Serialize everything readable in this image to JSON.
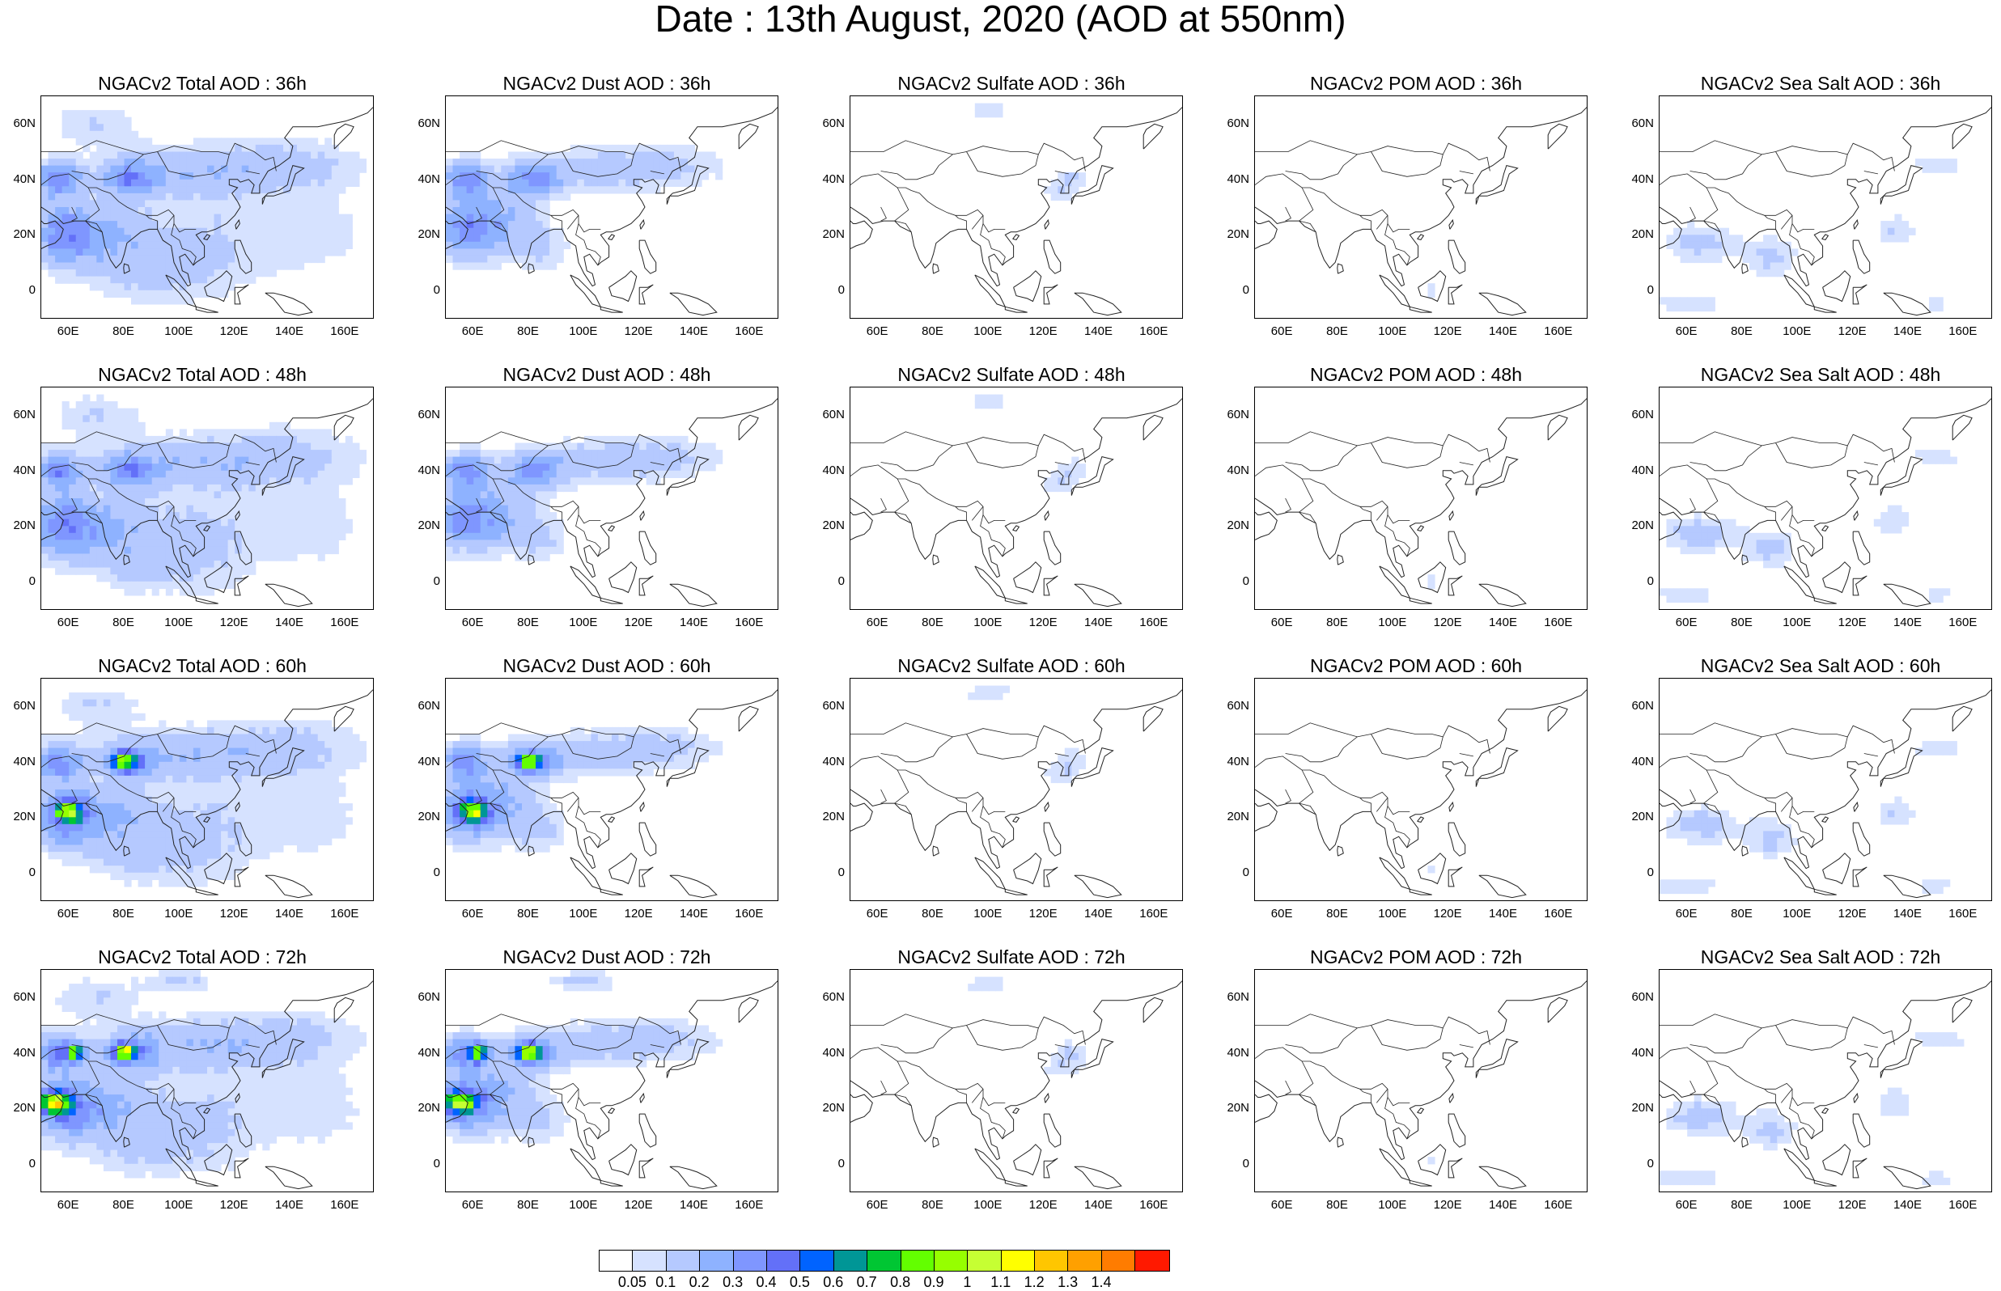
{
  "title": "Date : 13th August, 2020 (AOD at 550nm)",
  "panels": [
    [
      "NGACv2 Total AOD : 36h",
      "NGACv2 Dust AOD : 36h",
      "NGACv2 Sulfate AOD : 36h",
      "NGACv2 POM AOD : 36h",
      "NGACv2 Sea Salt AOD : 36h"
    ],
    [
      "NGACv2 Total AOD : 48h",
      "NGACv2 Dust AOD : 48h",
      "NGACv2 Sulfate AOD : 48h",
      "NGACv2 POM AOD : 48h",
      "NGACv2 Sea Salt AOD : 48h"
    ],
    [
      "NGACv2 Total AOD : 60h",
      "NGACv2 Dust AOD : 60h",
      "NGACv2 Sulfate AOD : 60h",
      "NGACv2 POM AOD : 60h",
      "NGACv2 Sea Salt AOD : 60h"
    ],
    [
      "NGACv2 Total AOD : 72h",
      "NGACv2 Dust AOD : 72h",
      "NGACv2 Sulfate AOD : 72h",
      "NGACv2 POM AOD : 72h",
      "NGACv2 Sea Salt  AOD : 72h"
    ]
  ],
  "lat_ticks": [
    "60N",
    "40N",
    "20N",
    "0"
  ],
  "lon_ticks": [
    "60E",
    "80E",
    "100E",
    "120E",
    "140E",
    "160E"
  ],
  "map_extent": {
    "lon": [
      50,
      170
    ],
    "lat": [
      -10,
      70
    ]
  },
  "colorbar": {
    "labels": [
      "0.05",
      "0.1",
      "0.2",
      "0.3",
      "0.4",
      "0.5",
      "0.6",
      "0.7",
      "0.8",
      "0.9",
      "1",
      "1.1",
      "1.2",
      "1.3",
      "1.4"
    ],
    "colors": [
      "#ffffff",
      "#d6e2ff",
      "#b5c9ff",
      "#8eb2ff",
      "#7f96ff",
      "#6370f8",
      "#0063ff",
      "#009696",
      "#00c633",
      "#63ff00",
      "#96ff00",
      "#c6ff33",
      "#ffff00",
      "#ffc600",
      "#ffa000",
      "#ff7c00",
      "#ff1900"
    ]
  }
}
